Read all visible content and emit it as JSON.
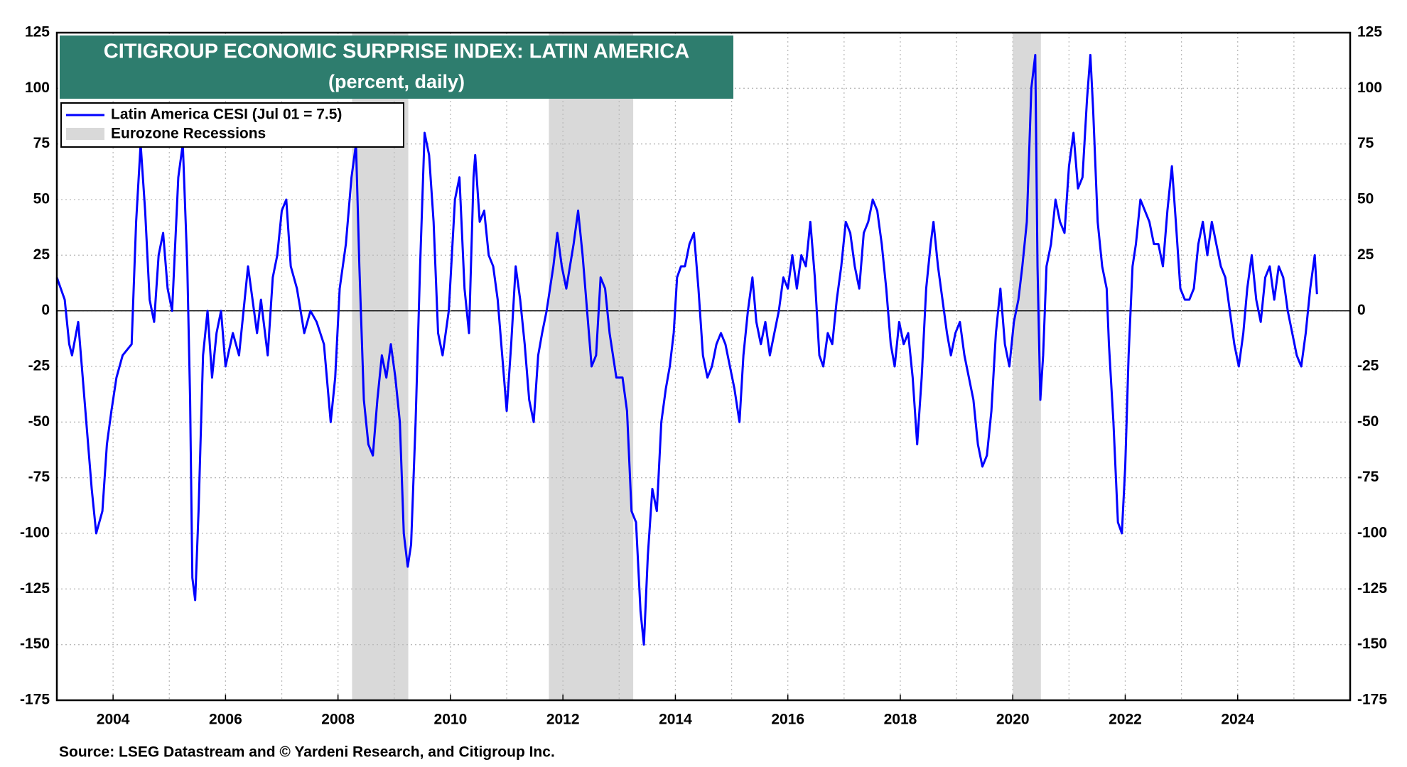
{
  "chart_data": {
    "type": "line",
    "title": "CITIGROUP ECONOMIC SURPRISE INDEX: LATIN AMERICA",
    "subtitle": "(percent, daily)",
    "source": "Source: LSEG Datastream and © Yardeni Research, and Citigroup Inc.",
    "xlim": [
      2003,
      2026
    ],
    "xticks": [
      2004,
      2006,
      2008,
      2010,
      2012,
      2014,
      2016,
      2018,
      2020,
      2022,
      2024
    ],
    "minor_xticks": [
      2005,
      2007,
      2009,
      2011,
      2013,
      2015,
      2017,
      2019,
      2021,
      2023,
      2025
    ],
    "ylim": [
      -175,
      125
    ],
    "yticks": [
      -175,
      -150,
      -125,
      -100,
      -75,
      -50,
      -25,
      0,
      25,
      50,
      75,
      100,
      125
    ],
    "y2lim": [
      -175,
      125
    ],
    "y2ticks": [
      -175,
      -150,
      -125,
      -100,
      -75,
      -50,
      -25,
      0,
      25,
      50,
      75,
      100,
      125
    ],
    "grid": true,
    "legend": "top-left",
    "recessions": {
      "name": "Eurozone Recessions",
      "color": "#d9d9d9",
      "spans": [
        [
          2008.25,
          2009.25
        ],
        [
          2011.75,
          2013.25
        ],
        [
          2020.0,
          2020.5
        ]
      ]
    },
    "x": [
      2003.0,
      2003.14,
      2003.22,
      2003.27,
      2003.38,
      2003.46,
      2003.54,
      2003.62,
      2003.7,
      2003.81,
      2003.89,
      2003.97,
      2004.06,
      2004.17,
      2004.33,
      2004.41,
      2004.49,
      2004.57,
      2004.65,
      2004.73,
      2004.81,
      2004.89,
      2004.97,
      2005.05,
      2005.16,
      2005.24,
      2005.32,
      2005.37,
      2005.41,
      2005.46,
      2005.52,
      2005.6,
      2005.68,
      2005.76,
      2005.84,
      2005.92,
      2006.0,
      2006.13,
      2006.24,
      2006.32,
      2006.4,
      2006.48,
      2006.56,
      2006.63,
      2006.75,
      2006.84,
      2006.92,
      2007.0,
      2007.08,
      2007.16,
      2007.27,
      2007.4,
      2007.51,
      2007.62,
      2007.75,
      2007.87,
      2007.95,
      2008.03,
      2008.14,
      2008.24,
      2008.32,
      2008.38,
      2008.46,
      2008.54,
      2008.62,
      2008.7,
      2008.78,
      2008.86,
      2008.94,
      2009.02,
      2009.1,
      2009.17,
      2009.24,
      2009.3,
      2009.38,
      2009.46,
      2009.54,
      2009.62,
      2009.7,
      2009.78,
      2009.86,
      2009.97,
      2010.08,
      2010.16,
      2010.25,
      2010.33,
      2010.41,
      2010.44,
      2010.52,
      2010.6,
      2010.68,
      2010.76,
      2010.84,
      2010.92,
      2011.0,
      2011.08,
      2011.16,
      2011.24,
      2011.32,
      2011.4,
      2011.48,
      2011.56,
      2011.63,
      2011.71,
      2011.83,
      2011.9,
      2011.98,
      2012.06,
      2012.19,
      2012.27,
      2012.35,
      2012.43,
      2012.51,
      2012.59,
      2012.67,
      2012.75,
      2012.83,
      2012.95,
      2013.06,
      2013.14,
      2013.22,
      2013.3,
      2013.38,
      2013.44,
      2013.51,
      2013.59,
      2013.67,
      2013.75,
      2013.83,
      2013.9,
      2013.97,
      2014.03,
      2014.1,
      2014.17,
      2014.25,
      2014.33,
      2014.41,
      2014.49,
      2014.57,
      2014.65,
      2014.73,
      2014.81,
      2014.89,
      2014.97,
      2015.05,
      2015.14,
      2015.21,
      2015.29,
      2015.37,
      2015.44,
      2015.52,
      2015.6,
      2015.68,
      2015.76,
      2015.84,
      2015.92,
      2016.0,
      2016.08,
      2016.16,
      2016.24,
      2016.32,
      2016.4,
      2016.48,
      2016.56,
      2016.63,
      2016.71,
      2016.79,
      2016.87,
      2016.95,
      2017.03,
      2017.11,
      2017.19,
      2017.27,
      2017.35,
      2017.43,
      2017.51,
      2017.59,
      2017.67,
      2017.75,
      2017.83,
      2017.9,
      2017.98,
      2018.06,
      2018.14,
      2018.22,
      2018.3,
      2018.38,
      2018.46,
      2018.54,
      2018.59,
      2018.67,
      2018.75,
      2018.83,
      2018.9,
      2018.98,
      2019.06,
      2019.14,
      2019.22,
      2019.3,
      2019.38,
      2019.46,
      2019.54,
      2019.62,
      2019.7,
      2019.78,
      2019.86,
      2019.94,
      2020.02,
      2020.1,
      2020.17,
      2020.25,
      2020.33,
      2020.4,
      2020.44,
      2020.49,
      2020.54,
      2020.6,
      2020.68,
      2020.76,
      2020.84,
      2020.92,
      2021.0,
      2021.08,
      2021.16,
      2021.24,
      2021.32,
      2021.38,
      2021.43,
      2021.51,
      2021.59,
      2021.67,
      2021.71,
      2021.79,
      2021.87,
      2021.94,
      2022.0,
      2022.06,
      2022.13,
      2022.19,
      2022.27,
      2022.35,
      2022.43,
      2022.51,
      2022.59,
      2022.67,
      2022.75,
      2022.83,
      2022.9,
      2022.98,
      2023.06,
      2023.14,
      2023.22,
      2023.3,
      2023.38,
      2023.46,
      2023.54,
      2023.62,
      2023.7,
      2023.78,
      2023.86,
      2023.94,
      2024.02,
      2024.1,
      2024.17,
      2024.25,
      2024.33,
      2024.41,
      2024.49,
      2024.57,
      2024.65,
      2024.73,
      2024.81,
      2024.89,
      2024.97,
      2025.05,
      2025.13,
      2025.21,
      2025.29,
      2025.37,
      2025.41
    ],
    "series": [
      {
        "name": "Latin America CESI (Jul 01 = 7.5)",
        "color": "#0000ff",
        "values": [
          15,
          5,
          -15,
          -20,
          -5,
          -30,
          -55,
          -80,
          -100,
          -90,
          -60,
          -45,
          -30,
          -20,
          -15,
          40,
          75,
          45,
          5,
          -5,
          25,
          35,
          10,
          0,
          60,
          75,
          20,
          -40,
          -120,
          -130,
          -90,
          -20,
          0,
          -30,
          -10,
          0,
          -25,
          -10,
          -20,
          0,
          20,
          5,
          -10,
          5,
          -20,
          15,
          25,
          45,
          50,
          20,
          10,
          -10,
          0,
          -5,
          -15,
          -50,
          -30,
          10,
          30,
          60,
          75,
          20,
          -40,
          -60,
          -65,
          -40,
          -20,
          -30,
          -15,
          -30,
          -50,
          -100,
          -115,
          -105,
          -50,
          20,
          80,
          70,
          40,
          -10,
          -20,
          0,
          50,
          60,
          10,
          -10,
          60,
          70,
          40,
          45,
          25,
          20,
          5,
          -20,
          -45,
          -15,
          20,
          5,
          -15,
          -40,
          -50,
          -20,
          -10,
          0,
          20,
          35,
          20,
          10,
          30,
          45,
          25,
          0,
          -25,
          -20,
          15,
          10,
          -10,
          -30,
          -30,
          -45,
          -90,
          -95,
          -135,
          -150,
          -110,
          -80,
          -90,
          -50,
          -35,
          -25,
          -10,
          15,
          20,
          20,
          30,
          35,
          10,
          -20,
          -30,
          -25,
          -15,
          -10,
          -15,
          -25,
          -35,
          -50,
          -20,
          0,
          15,
          -5,
          -15,
          -5,
          -20,
          -10,
          0,
          15,
          10,
          25,
          10,
          25,
          20,
          40,
          15,
          -20,
          -25,
          -10,
          -15,
          5,
          20,
          40,
          35,
          20,
          10,
          35,
          40,
          50,
          45,
          30,
          10,
          -15,
          -25,
          -5,
          -15,
          -10,
          -30,
          -60,
          -30,
          10,
          30,
          40,
          20,
          5,
          -10,
          -20,
          -10,
          -5,
          -20,
          -30,
          -40,
          -60,
          -70,
          -65,
          -45,
          -10,
          10,
          -15,
          -25,
          -5,
          5,
          20,
          40,
          100,
          115,
          20,
          -40,
          -20,
          20,
          30,
          50,
          40,
          35,
          65,
          80,
          55,
          60,
          95,
          115,
          90,
          40,
          20,
          10,
          -15,
          -50,
          -95,
          -100,
          -70,
          -20,
          20,
          30,
          50,
          45,
          40,
          30,
          30,
          20,
          45,
          65,
          40,
          10,
          5,
          5,
          10,
          30,
          40,
          25,
          40,
          30,
          20,
          15,
          0,
          -15,
          -25,
          -10,
          10,
          25,
          5,
          -5,
          15,
          20,
          5,
          20,
          15,
          0,
          -10,
          -20,
          -25,
          -10,
          10,
          25,
          7.5
        ]
      }
    ]
  }
}
